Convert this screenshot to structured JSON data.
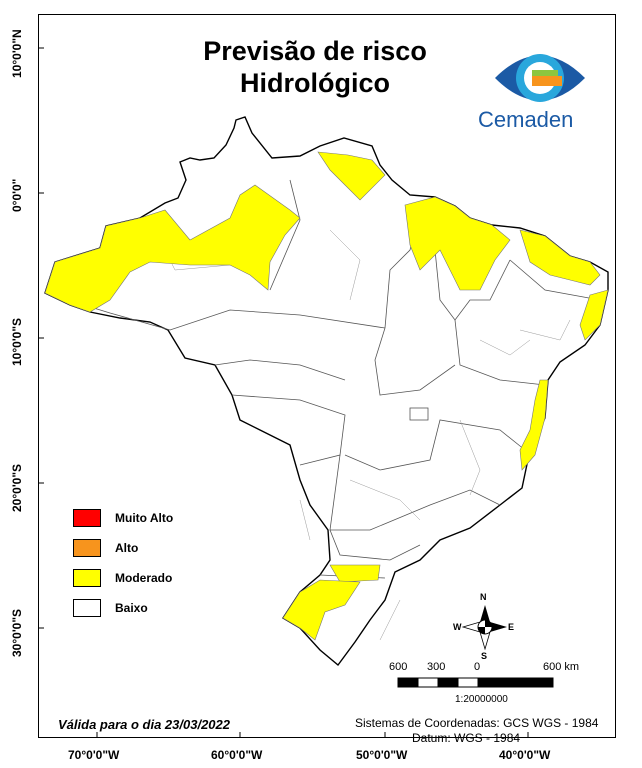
{
  "title": {
    "line1": "Previsão de risco",
    "line2": "Hidrológico"
  },
  "logo": {
    "name": "Cemaden",
    "colors": [
      "#1b5aa5",
      "#29a7dc",
      "#f7941d",
      "#8cc63f"
    ]
  },
  "axes": {
    "latitudes": [
      "10°0'0\"N",
      "0°0'0\"",
      "10°0'0\"S",
      "20°0'0\"S",
      "30°0'0\"S"
    ],
    "longitudes": [
      "70°0'0\"W",
      "60°0'0\"W",
      "50°0'0\"W",
      "40°0'0\"W"
    ]
  },
  "legend": [
    {
      "label": "Muito Alto",
      "color": "#ff0000"
    },
    {
      "label": "Alto",
      "color": "#f7941d"
    },
    {
      "label": "Moderado",
      "color": "#ffff00"
    },
    {
      "label": "Baixo",
      "color": "#ffffff"
    }
  ],
  "risk_areas": [
    {
      "region": "Oeste do Amazonas / Acre",
      "level": "Moderado"
    },
    {
      "region": "Amapá",
      "level": "Moderado"
    },
    {
      "region": "Maranhão / Pará nordeste",
      "level": "Moderado"
    },
    {
      "region": "Ceará / Rio Grande do Norte",
      "level": "Moderado"
    },
    {
      "region": "Litoral Paraíba / Pernambuco",
      "level": "Moderado"
    },
    {
      "region": "Sul da Bahia",
      "level": "Moderado"
    },
    {
      "region": "Santa Catarina / Rio Grande do Sul oeste",
      "level": "Moderado"
    }
  ],
  "compass": {
    "n": "N",
    "s": "S",
    "e": "E",
    "w": "W"
  },
  "scale": {
    "labels": [
      "600",
      "300",
      "0",
      "600 km"
    ],
    "ratio": "1:20000000"
  },
  "valid_date": "Válida para o dia 23/03/2022",
  "coord_system": "Sistemas de Coordenadas: GCS WGS - 1984",
  "datum": "Datum: WGS - 1984"
}
